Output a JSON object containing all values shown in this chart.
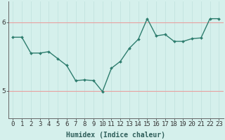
{
  "x": [
    0,
    1,
    2,
    3,
    4,
    5,
    6,
    7,
    8,
    9,
    10,
    11,
    12,
    13,
    14,
    15,
    16,
    17,
    18,
    19,
    20,
    21,
    22,
    23
  ],
  "y": [
    5.78,
    5.78,
    5.55,
    5.55,
    5.57,
    5.47,
    5.37,
    5.15,
    5.16,
    5.15,
    4.99,
    5.33,
    5.43,
    5.62,
    5.75,
    6.05,
    5.8,
    5.82,
    5.72,
    5.72,
    5.76,
    5.77,
    6.05,
    6.05
  ],
  "line_color": "#2E7D6E",
  "marker": "D",
  "marker_size": 2.0,
  "bg_color": "#D5F0EC",
  "grid_color_v": "#C2E4DF",
  "grid_color_h": "#E8A0A0",
  "xlabel": "Humidex (Indice chaleur)",
  "yticks": [
    5,
    6
  ],
  "ylim": [
    4.6,
    6.3
  ],
  "xlim": [
    -0.5,
    23.5
  ],
  "xlabel_fontsize": 7,
  "tick_fontsize": 6.5,
  "line_width": 1.0,
  "spine_color": "#666666"
}
